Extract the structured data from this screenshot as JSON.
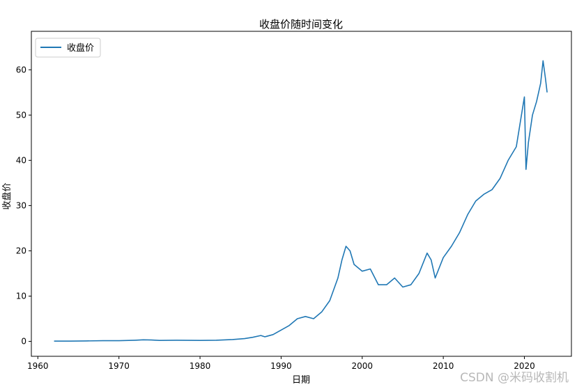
{
  "chart_data": {
    "type": "line",
    "title": "收盘价随时间变化",
    "xlabel": "日期",
    "ylabel": "收盘价",
    "xlim": [
      1959.2,
      2025.8
    ],
    "ylim": [
      -3.3,
      68.5
    ],
    "xticks": [
      1960,
      1970,
      1980,
      1990,
      2000,
      2010,
      2020
    ],
    "yticks": [
      0,
      10,
      20,
      30,
      40,
      50,
      60
    ],
    "grid": false,
    "legend": "upper left",
    "series": [
      {
        "name": "收盘价",
        "color": "#1f77b4",
        "x": [
          1962.0,
          1964.0,
          1966.0,
          1968.0,
          1970.0,
          1972.0,
          1973.0,
          1974.0,
          1975.0,
          1977.0,
          1980.0,
          1982.0,
          1984.0,
          1985.5,
          1986.5,
          1987.5,
          1988.0,
          1989.0,
          1990.0,
          1991.0,
          1992.0,
          1993.0,
          1994.0,
          1995.0,
          1996.0,
          1997.0,
          1997.5,
          1998.0,
          1998.5,
          1999.0,
          2000.0,
          2001.0,
          2002.0,
          2003.0,
          2004.0,
          2005.0,
          2006.0,
          2007.0,
          2008.0,
          2008.5,
          2009.0,
          2010.0,
          2011.0,
          2012.0,
          2013.0,
          2014.0,
          2015.0,
          2016.0,
          2017.0,
          2018.0,
          2019.0,
          2020.0,
          2020.2,
          2020.5,
          2021.0,
          2021.5,
          2022.0,
          2022.3,
          2022.6,
          2022.8
        ],
        "y": [
          0.05,
          0.05,
          0.1,
          0.15,
          0.15,
          0.25,
          0.35,
          0.3,
          0.2,
          0.25,
          0.2,
          0.25,
          0.4,
          0.6,
          0.9,
          1.3,
          1.0,
          1.5,
          2.5,
          3.5,
          5.0,
          5.5,
          5.0,
          6.5,
          9.0,
          14.0,
          18.0,
          21.0,
          20.0,
          17.0,
          15.5,
          16.0,
          12.5,
          12.5,
          14.0,
          12.0,
          12.5,
          15.0,
          19.5,
          18.0,
          14.0,
          18.5,
          21.0,
          24.0,
          28.0,
          31.0,
          32.5,
          33.5,
          36.0,
          40.0,
          43.0,
          54.0,
          38.0,
          44.0,
          50.0,
          53.0,
          57.0,
          62.0,
          58.0,
          55.0
        ]
      }
    ]
  },
  "watermark": "CSDN @米码收割机"
}
